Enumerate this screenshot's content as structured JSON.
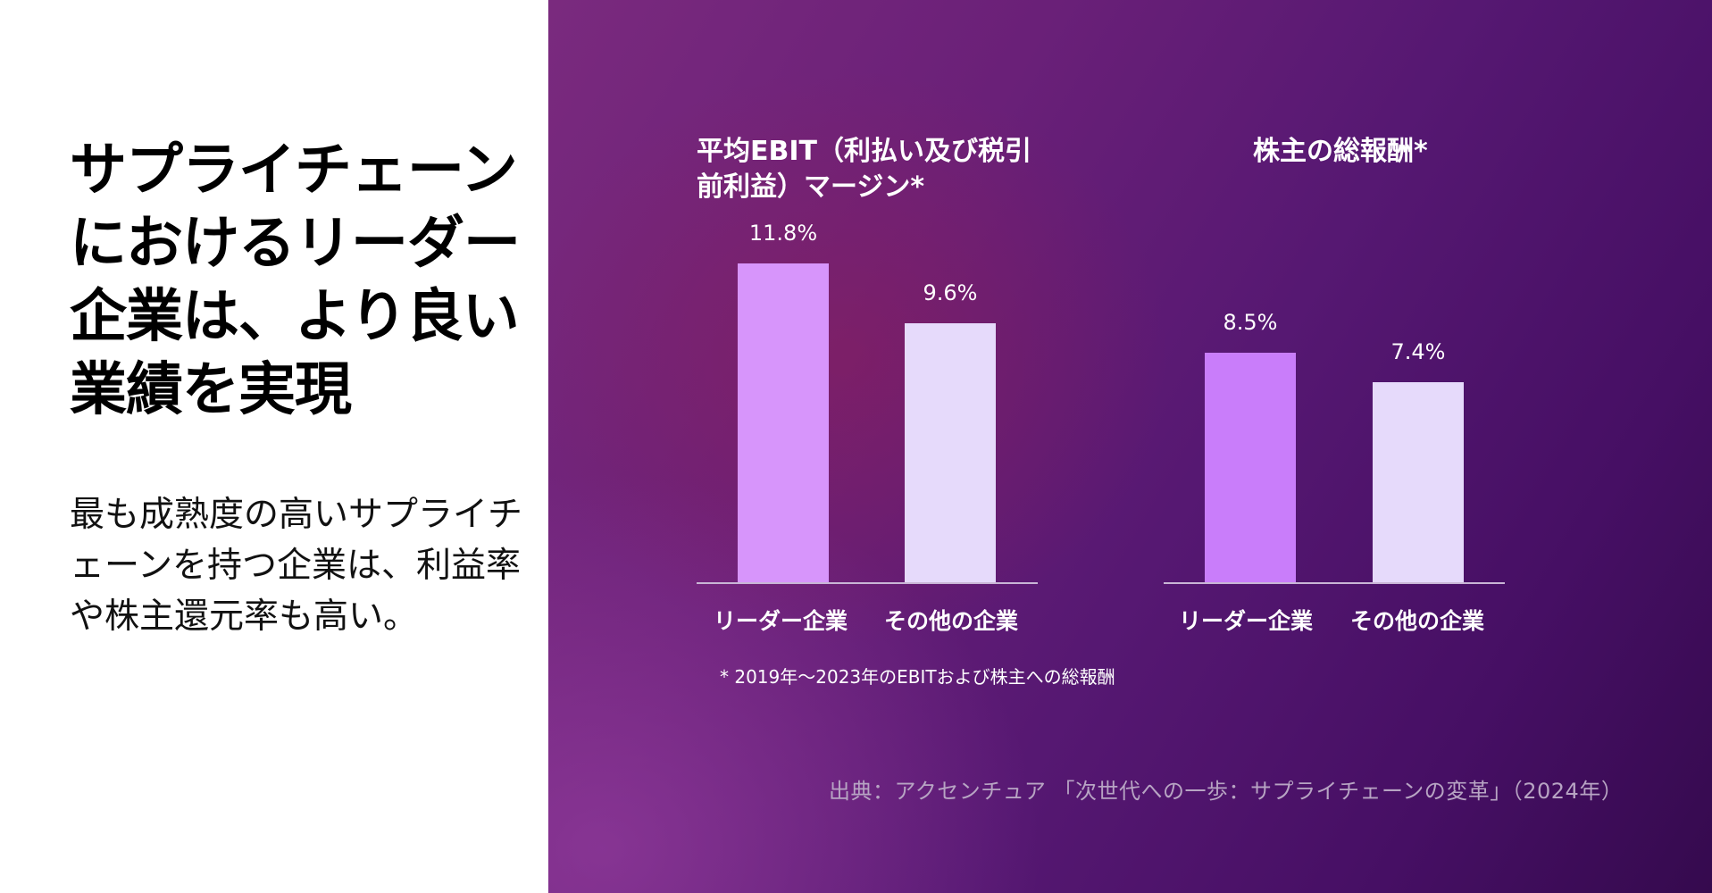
{
  "headline": "サプライチェーンにおけるリーダー企業は、より良い業績を実現",
  "subtext": "最も成熟度の高いサプライチェーンを持つ企業は、利益率や株主還元率も高い。",
  "chart_data": [
    {
      "type": "bar",
      "title_line1": "平均EBIT（利払い及び税引",
      "title_line2": "前利益）マージン*",
      "categories": [
        "リーダー企業",
        "その他の企業"
      ],
      "values": [
        11.8,
        9.6
      ],
      "value_labels": [
        "11.8%",
        "9.6%"
      ],
      "colors": [
        "#d795fb",
        "#e6dafb"
      ],
      "ylim": [
        0,
        12.1
      ]
    },
    {
      "type": "bar",
      "title_line1": "株主の総報酬*",
      "title_line2": "",
      "categories": [
        "リーダー企業",
        "その他の企業"
      ],
      "values": [
        8.5,
        7.4
      ],
      "value_labels": [
        "8.5%",
        "7.4%"
      ],
      "colors": [
        "#c97dfa",
        "#e6dafb"
      ],
      "ylim": [
        0,
        12.1
      ]
    }
  ],
  "footnote": "* 2019年～2023年のEBITおよび株主への総報酬",
  "source": "出典：アクセンチュア 「次世代への一歩：サプライチェーンの変革」（2024年）"
}
